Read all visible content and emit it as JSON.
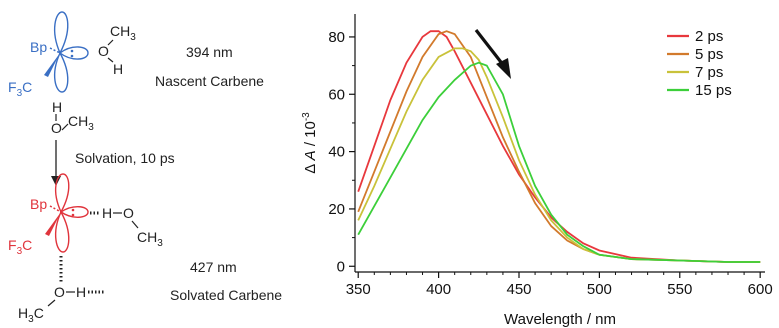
{
  "scheme": {
    "nascent": {
      "substituent_top": "Bp",
      "substituent_bottom": "F",
      "substituent_bottom_sub": "3",
      "substituent_bottom_tail": "C",
      "methanol_top": "CH",
      "methanol_top_sub": "3",
      "methanol_o": "O",
      "methanol_h": "H",
      "wavelength": "394 nm",
      "name": "Nascent Carbene",
      "color": "#3a6fc4"
    },
    "free_methanol": {
      "h": "H",
      "o": "O",
      "ch": "CH",
      "ch_sub": "3"
    },
    "arrow_label": "Solvation, 10 ps",
    "solvated": {
      "substituent_top": "Bp",
      "substituent_bottom": "F",
      "substituent_bottom_sub": "3",
      "substituent_bottom_tail": "C",
      "hbond_h": "H",
      "hbond_o": "O",
      "hbond_ch": "CH",
      "hbond_ch_sub": "3",
      "lower_h3c": "H",
      "lower_h3c_sub": "3",
      "lower_h3c_tail": "C",
      "lower_o": "O",
      "lower_h": "H",
      "wavelength": "427 nm",
      "name": "Solvated Carbene",
      "color": "#e0343c"
    }
  },
  "chart_data": {
    "type": "line",
    "xlabel": "Wavelength / nm",
    "ylabel_prefix": "Δ",
    "ylabel_var": "A",
    "ylabel_mid": " / 10",
    "ylabel_exp": "-3",
    "xlim": [
      348,
      603
    ],
    "ylim": [
      -2,
      88
    ],
    "xticks": [
      350,
      400,
      450,
      500,
      550,
      600
    ],
    "yticks": [
      0,
      20,
      40,
      60,
      80
    ],
    "legend_position": "top-right",
    "series": [
      {
        "name": "2 ps",
        "color": "#e8383d",
        "x": [
          350,
          360,
          370,
          380,
          390,
          395,
          400,
          405,
          410,
          420,
          430,
          440,
          450,
          460,
          470,
          480,
          490,
          500,
          520,
          550,
          580,
          600
        ],
        "y": [
          26,
          42,
          58,
          71,
          80,
          82,
          82,
          80,
          75,
          64,
          53,
          42,
          32,
          24,
          17,
          12,
          8,
          5.5,
          3,
          2,
          1.5,
          1.5
        ]
      },
      {
        "name": "5 ps",
        "color": "#d27a2c",
        "x": [
          350,
          360,
          370,
          380,
          390,
          400,
          405,
          410,
          415,
          420,
          430,
          440,
          450,
          460,
          470,
          480,
          490,
          500,
          520,
          550,
          580,
          600
        ],
        "y": [
          19,
          33,
          47,
          61,
          73,
          81,
          82,
          81,
          77,
          73,
          59,
          45,
          33,
          22,
          14,
          9,
          6,
          4,
          2.5,
          2,
          1.5,
          1.5
        ]
      },
      {
        "name": "7 ps",
        "color": "#c9c23a",
        "x": [
          350,
          360,
          370,
          380,
          390,
          400,
          410,
          415,
          420,
          425,
          430,
          440,
          450,
          460,
          470,
          480,
          490,
          500,
          520,
          550,
          580,
          600
        ],
        "y": [
          16,
          28,
          41,
          54,
          65,
          73,
          76,
          76,
          75,
          72,
          66,
          52,
          37,
          25,
          16,
          10,
          6,
          4,
          2.5,
          2,
          1.5,
          1.5
        ]
      },
      {
        "name": "15 ps",
        "color": "#3ccf3a",
        "x": [
          350,
          360,
          370,
          380,
          390,
          400,
          410,
          420,
          425,
          430,
          440,
          450,
          460,
          470,
          480,
          490,
          500,
          520,
          550,
          580,
          600
        ],
        "y": [
          11,
          21,
          31,
          41,
          51,
          59,
          65,
          70,
          71,
          70,
          60,
          42,
          28,
          18,
          11,
          7,
          4,
          2.5,
          2,
          1.5,
          1.5
        ]
      }
    ]
  }
}
